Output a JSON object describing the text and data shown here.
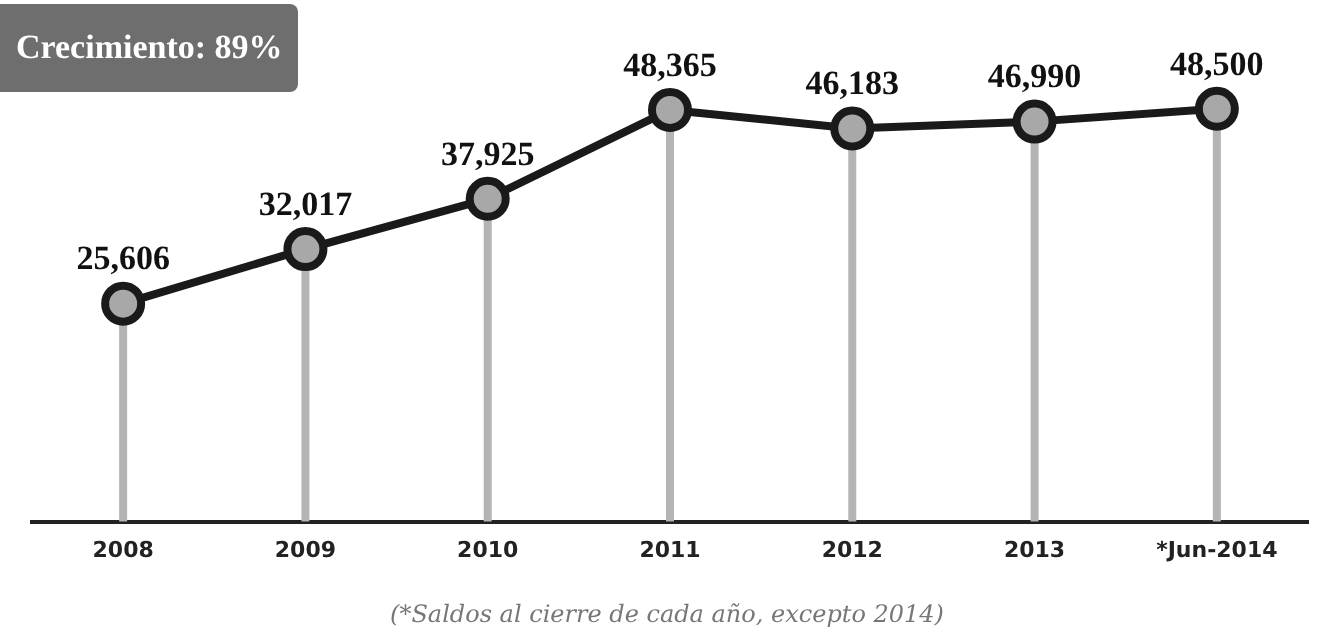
{
  "chart_data": {
    "type": "line",
    "title": "Crecimiento: 89%",
    "categories": [
      "2008",
      "2009",
      "2010",
      "2011",
      "2012",
      "2013",
      "*Jun-2014"
    ],
    "series": [
      {
        "color": "#1a1a1a",
        "values": [
          25606,
          32017,
          37925,
          48365,
          46183,
          46990,
          48500
        ],
        "value_labels": [
          "25,606",
          "32,017",
          "37,925",
          "48,365",
          "46,183",
          "46,990",
          "48,500"
        ]
      }
    ],
    "marker": "circle",
    "line_style": "solid",
    "grid": "x",
    "legend": false,
    "annotations": [
      "(*Saldos al cierre de cada año, excepto 2014)"
    ]
  }
}
